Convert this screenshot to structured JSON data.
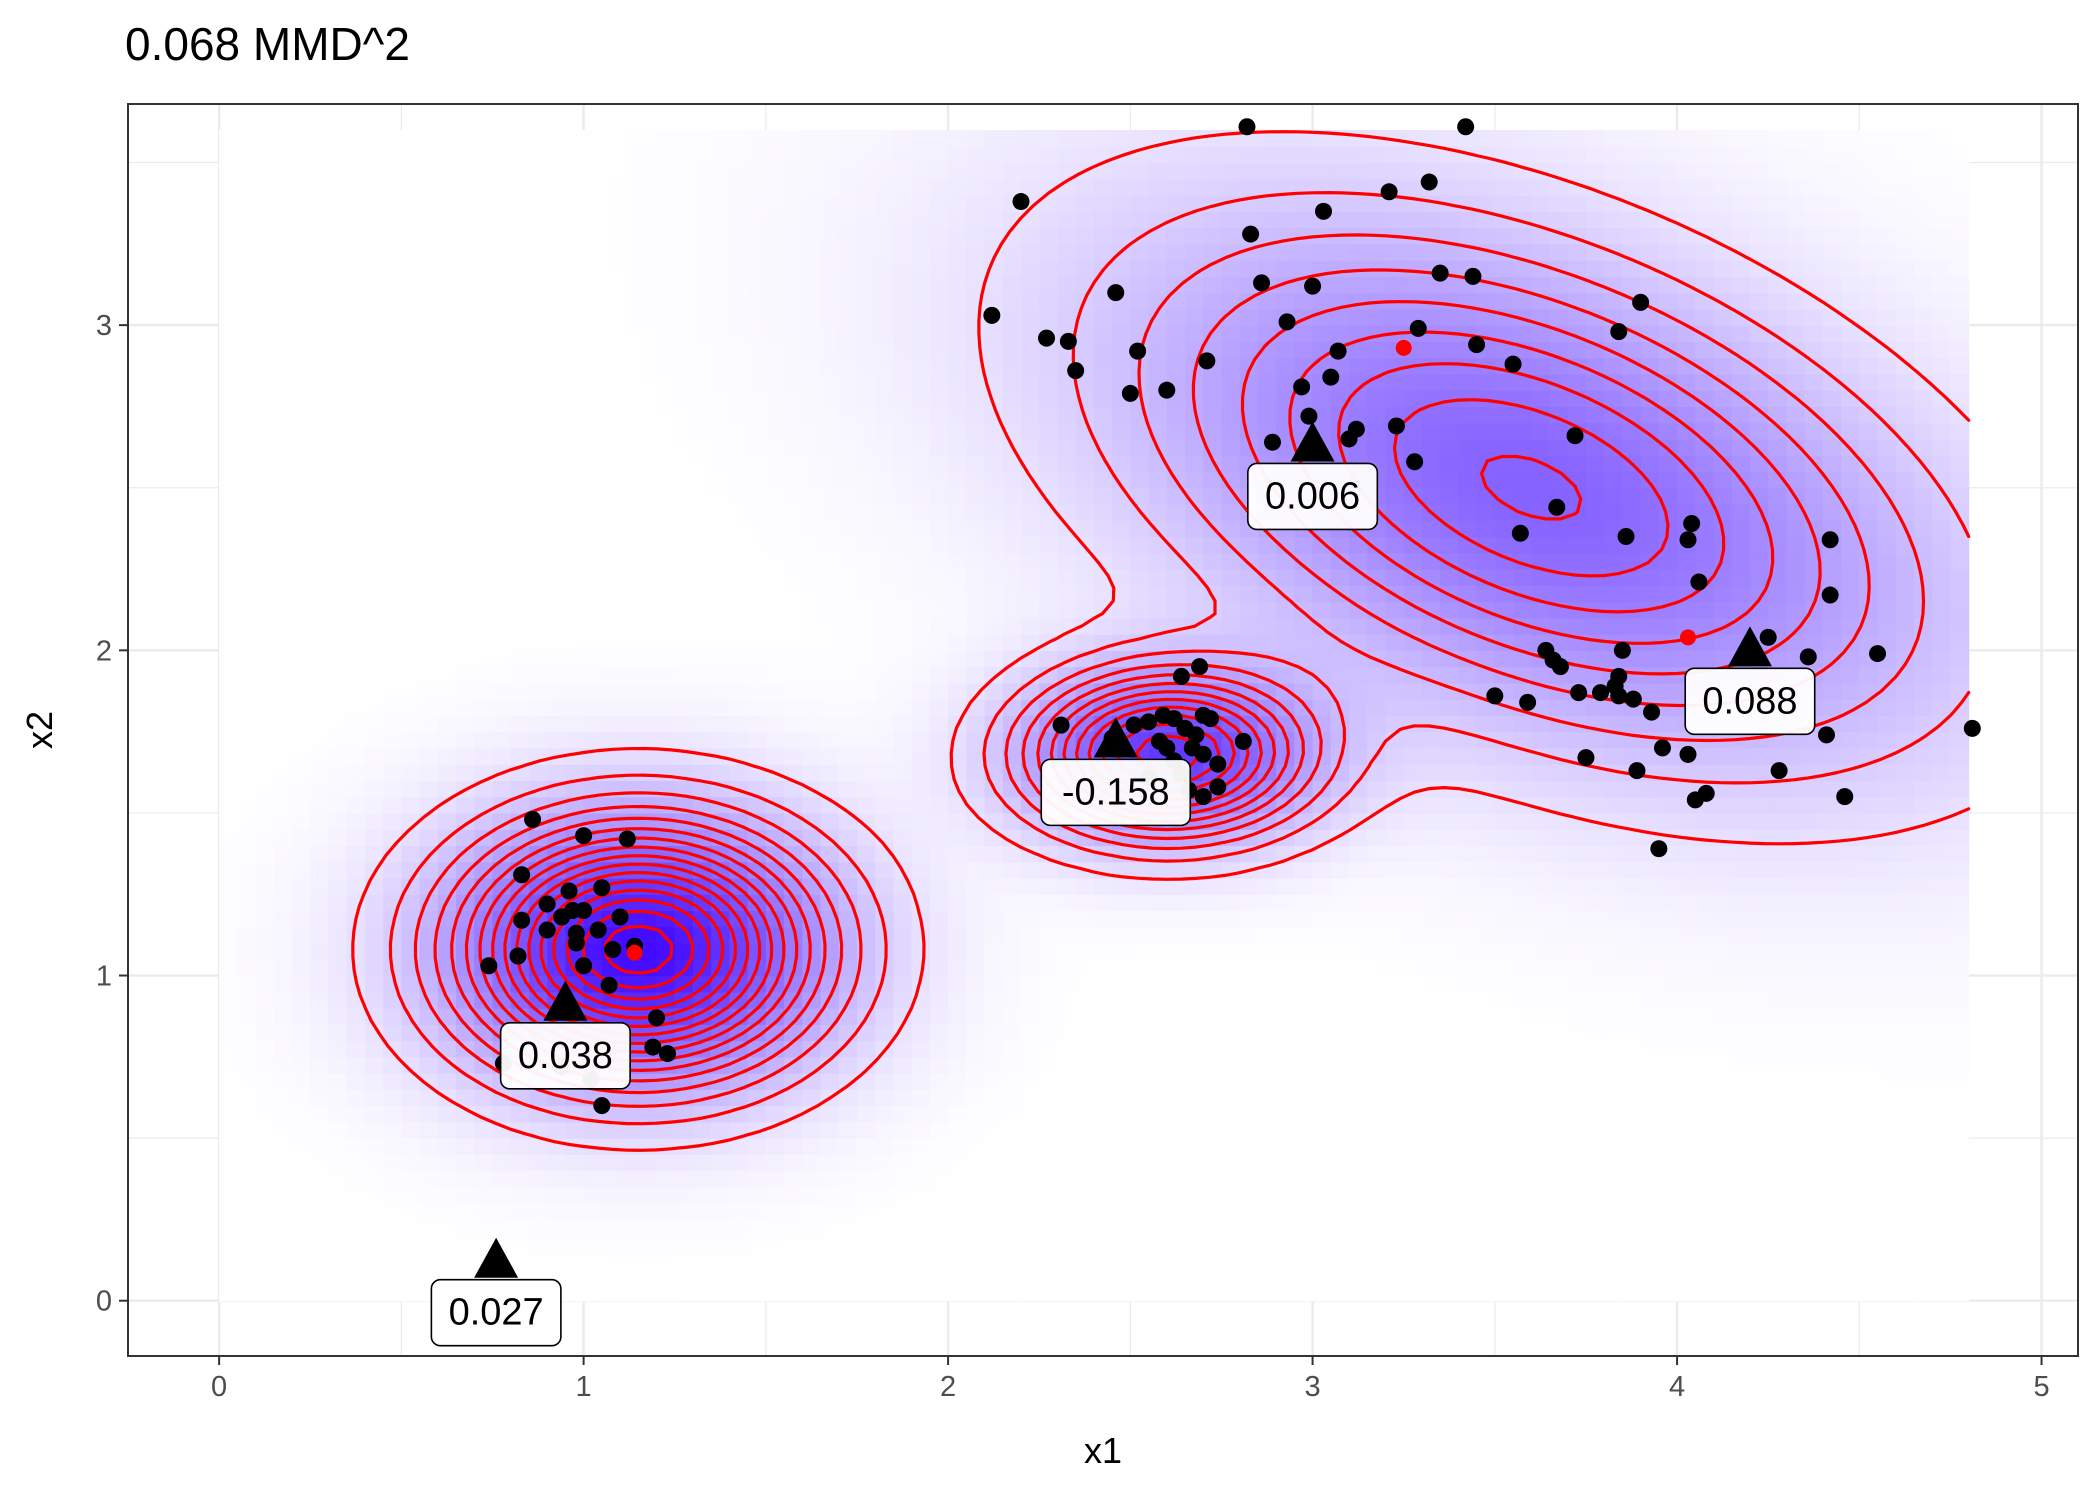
{
  "chart_data": {
    "type": "scatter",
    "title": "0.068 MMD^2",
    "xlabel": "x1",
    "ylabel": "x2",
    "xlim": [
      -0.25,
      5.1
    ],
    "ylim": [
      -0.17,
      3.68
    ],
    "xticks": [
      0,
      1,
      2,
      3,
      4,
      5
    ],
    "yticks": [
      0,
      1,
      2,
      3
    ],
    "grid": true,
    "background": "density heatmap (white to blue) with red contour lines",
    "colors": {
      "points": "#000000",
      "centers": "#ff0000",
      "contours": "#ff0000",
      "heat_low": "#ffffff",
      "heat_high": "#3a00ff",
      "markers": "#000000"
    },
    "density_components": [
      {
        "mx": 1.15,
        "my": 1.08,
        "sx": 0.33,
        "sy": 0.26,
        "rho": 0.0,
        "w": 1.0
      },
      {
        "mx": 2.6,
        "my": 1.68,
        "sx": 0.26,
        "sy": 0.17,
        "rho": 0.0,
        "w": 0.75
      },
      {
        "mx": 3.6,
        "my": 2.5,
        "sx": 0.72,
        "sy": 0.52,
        "rho": -0.45,
        "w": 0.55
      }
    ],
    "red_points": [
      {
        "x": 1.14,
        "y": 1.07
      },
      {
        "x": 3.25,
        "y": 2.93
      },
      {
        "x": 4.03,
        "y": 2.04
      }
    ],
    "labeled_markers": [
      {
        "x": 0.76,
        "y": 0.12,
        "label": "0.027"
      },
      {
        "x": 0.95,
        "y": 0.91,
        "label": "0.038"
      },
      {
        "x": 2.46,
        "y": 1.72,
        "label": "-0.158"
      },
      {
        "x": 3.0,
        "y": 2.63,
        "label": "0.006"
      },
      {
        "x": 4.2,
        "y": 2.0,
        "label": "0.088"
      }
    ],
    "points": [
      [
        0.86,
        1.48
      ],
      [
        1.0,
        1.43
      ],
      [
        1.12,
        1.42
      ],
      [
        0.83,
        1.31
      ],
      [
        0.96,
        1.26
      ],
      [
        1.05,
        1.27
      ],
      [
        0.9,
        1.22
      ],
      [
        0.97,
        1.2
      ],
      [
        1.0,
        1.2
      ],
      [
        0.94,
        1.18
      ],
      [
        1.1,
        1.18
      ],
      [
        0.83,
        1.17
      ],
      [
        0.9,
        1.14
      ],
      [
        0.98,
        1.13
      ],
      [
        1.04,
        1.14
      ],
      [
        0.98,
        1.1
      ],
      [
        1.08,
        1.08
      ],
      [
        1.14,
        1.09
      ],
      [
        0.82,
        1.06
      ],
      [
        1.0,
        1.03
      ],
      [
        0.74,
        1.03
      ],
      [
        1.07,
        0.97
      ],
      [
        1.2,
        0.87
      ],
      [
        1.19,
        0.78
      ],
      [
        1.23,
        0.76
      ],
      [
        0.78,
        0.73
      ],
      [
        0.94,
        0.72
      ],
      [
        1.02,
        0.68
      ],
      [
        1.05,
        0.6
      ],
      [
        2.12,
        3.03
      ],
      [
        2.2,
        3.38
      ],
      [
        2.27,
        2.96
      ],
      [
        2.33,
        2.95
      ],
      [
        2.35,
        2.86
      ],
      [
        2.46,
        3.1
      ],
      [
        2.5,
        2.79
      ],
      [
        2.52,
        2.92
      ],
      [
        2.6,
        2.8
      ],
      [
        2.71,
        2.89
      ],
      [
        2.82,
        3.61
      ],
      [
        2.83,
        3.28
      ],
      [
        2.86,
        3.13
      ],
      [
        2.89,
        2.64
      ],
      [
        2.93,
        3.01
      ],
      [
        2.97,
        2.81
      ],
      [
        2.99,
        2.72
      ],
      [
        3.0,
        3.12
      ],
      [
        3.03,
        3.35
      ],
      [
        3.05,
        2.84
      ],
      [
        3.07,
        2.92
      ],
      [
        3.1,
        2.65
      ],
      [
        3.12,
        2.68
      ],
      [
        3.21,
        3.41
      ],
      [
        3.23,
        2.69
      ],
      [
        3.28,
        2.58
      ],
      [
        3.29,
        2.99
      ],
      [
        3.32,
        3.44
      ],
      [
        3.35,
        3.16
      ],
      [
        3.42,
        3.61
      ],
      [
        3.44,
        3.15
      ],
      [
        3.45,
        2.94
      ],
      [
        3.55,
        2.88
      ],
      [
        3.57,
        2.36
      ],
      [
        3.67,
        2.44
      ],
      [
        3.72,
        2.66
      ],
      [
        3.84,
        2.98
      ],
      [
        3.86,
        2.35
      ],
      [
        3.9,
        3.07
      ],
      [
        4.03,
        2.34
      ],
      [
        4.04,
        2.39
      ],
      [
        4.06,
        2.21
      ],
      [
        4.42,
        2.34
      ],
      [
        4.42,
        2.17
      ],
      [
        4.55,
        1.99
      ],
      [
        4.81,
        1.76
      ],
      [
        4.46,
        1.55
      ],
      [
        4.28,
        1.63
      ],
      [
        4.25,
        2.04
      ],
      [
        4.36,
        1.98
      ],
      [
        4.41,
        1.74
      ],
      [
        4.05,
        1.54
      ],
      [
        4.08,
        1.56
      ],
      [
        4.03,
        1.68
      ],
      [
        3.96,
        1.7
      ],
      [
        3.93,
        1.81
      ],
      [
        3.89,
        1.63
      ],
      [
        3.95,
        1.39
      ],
      [
        3.75,
        1.67
      ],
      [
        3.84,
        1.92
      ],
      [
        3.85,
        2.0
      ],
      [
        3.88,
        1.85
      ],
      [
        3.79,
        1.87
      ],
      [
        3.84,
        1.86
      ],
      [
        3.83,
        1.89
      ],
      [
        3.73,
        1.87
      ],
      [
        3.68,
        1.95
      ],
      [
        3.64,
        2.0
      ],
      [
        3.59,
        1.84
      ],
      [
        3.5,
        1.86
      ],
      [
        3.66,
        1.97
      ],
      [
        2.31,
        1.77
      ],
      [
        2.45,
        1.73
      ],
      [
        2.51,
        1.77
      ],
      [
        2.55,
        1.78
      ],
      [
        2.59,
        1.8
      ],
      [
        2.62,
        1.79
      ],
      [
        2.65,
        1.76
      ],
      [
        2.7,
        1.8
      ],
      [
        2.72,
        1.79
      ],
      [
        2.67,
        1.7
      ],
      [
        2.7,
        1.68
      ],
      [
        2.74,
        1.65
      ],
      [
        2.58,
        1.72
      ],
      [
        2.6,
        1.7
      ],
      [
        2.64,
        1.62
      ],
      [
        2.66,
        1.57
      ],
      [
        2.7,
        1.55
      ],
      [
        2.55,
        1.61
      ],
      [
        2.74,
        1.58
      ],
      [
        2.69,
        1.95
      ],
      [
        2.64,
        1.92
      ],
      [
        2.81,
        1.72
      ],
      [
        2.62,
        1.66
      ],
      [
        2.68,
        1.74
      ]
    ]
  }
}
